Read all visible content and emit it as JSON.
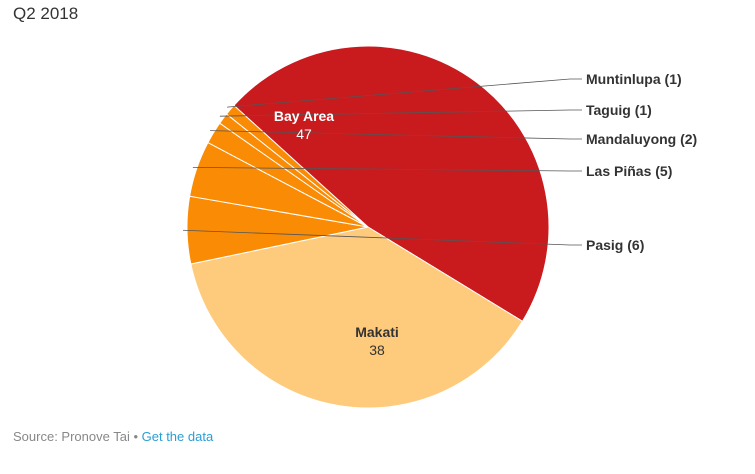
{
  "title": "Q2 2018",
  "footer": {
    "source": "Source: Pronove Tai",
    "separator": " • ",
    "link": "Get the data"
  },
  "chart_data": {
    "type": "pie",
    "title": "Q2 2018",
    "slices": [
      {
        "label": "Bay Area",
        "value": 47,
        "color": "#c91a1e",
        "inside_label": true,
        "text_color": "#ffffff"
      },
      {
        "label": "Makati",
        "value": 38,
        "color": "#fecb7c",
        "inside_label": true,
        "text_color": "#333333"
      },
      {
        "label": "Pasig",
        "value": 6,
        "color": "#f98b05",
        "inside_label": false,
        "display": "Pasig (6)"
      },
      {
        "label": "Las Piñas",
        "value": 5,
        "color": "#f98b05",
        "inside_label": false,
        "display": "Las Piñas (5)"
      },
      {
        "label": "Mandaluyong",
        "value": 2,
        "color": "#f98b05",
        "inside_label": false,
        "display": "Mandaluyong (2)"
      },
      {
        "label": "Taguig",
        "value": 1,
        "color": "#f98b05",
        "inside_label": false,
        "display": "Taguig (1)"
      },
      {
        "label": "Muntinlupa",
        "value": 1,
        "color": "#f98b05",
        "inside_label": false,
        "display": "Muntinlupa (1)"
      }
    ]
  }
}
